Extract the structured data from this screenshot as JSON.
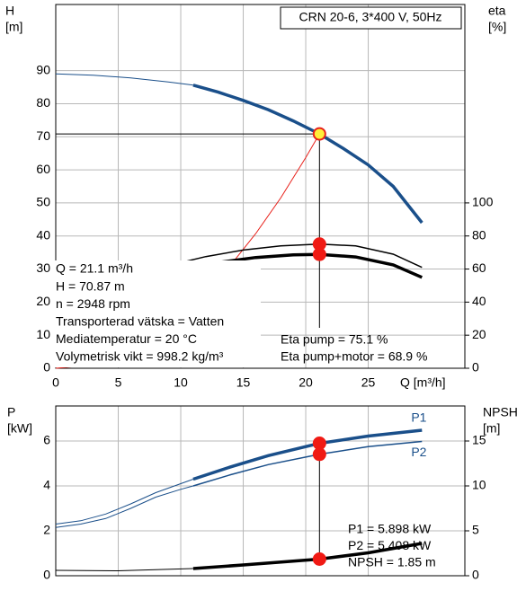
{
  "chart_data": [
    {
      "type": "line",
      "title": "CRN 20-6, 3*400 V, 50Hz",
      "ylabel": [
        "H",
        "[m]"
      ],
      "y2label": [
        "eta",
        "[%]"
      ],
      "xlabel": "Q [m³/h]",
      "xlim": [
        0,
        32.73
      ],
      "xticks": [
        0,
        5,
        10,
        15,
        20,
        25
      ],
      "ylim": [
        0,
        110
      ],
      "yticks": [
        0,
        10,
        20,
        30,
        40,
        50,
        60,
        70,
        80,
        90
      ],
      "y2lim": [
        0,
        220
      ],
      "y2ticks": [
        0,
        20,
        40,
        60,
        80,
        100
      ],
      "grid": true,
      "series": [
        {
          "color": "#1a4f8a",
          "width": 1,
          "axis": "y",
          "x": [
            0,
            3,
            6,
            9,
            11
          ],
          "values": [
            89,
            88.6,
            87.8,
            86.6,
            85.6
          ]
        },
        {
          "color": "#1a4f8a",
          "width": 3.5,
          "axis": "y",
          "x": [
            11,
            13,
            15,
            17,
            19,
            21.1,
            23,
            25,
            27,
            29.3
          ],
          "values": [
            85.6,
            83.5,
            81,
            78.2,
            74.8,
            70.87,
            66.5,
            61.5,
            55,
            44
          ]
        },
        {
          "color": "#e8201a",
          "width": 1,
          "axis": "y",
          "x": [
            0,
            2,
            4,
            6,
            8,
            10,
            12,
            14,
            16,
            18,
            20,
            21.1
          ],
          "values": [
            0,
            0.64,
            2.5,
            5.7,
            10.2,
            15.9,
            22.9,
            31.2,
            40.7,
            51.5,
            63.7,
            70.87
          ]
        },
        {
          "color": "#000000",
          "width": 1.5,
          "axis": "y2",
          "x": [
            9.5,
            12,
            15,
            18,
            21.1,
            24,
            27,
            29.3
          ],
          "values": [
            63,
            67.5,
            71.5,
            74,
            75.1,
            74,
            69,
            61
          ]
        },
        {
          "color": "#000000",
          "width": 3.5,
          "axis": "y2",
          "x": [
            10.5,
            13,
            16,
            19,
            21.1,
            24,
            27,
            29.3
          ],
          "values": [
            61,
            64,
            67,
            68.6,
            68.9,
            67.3,
            62.5,
            55
          ]
        }
      ],
      "duty": {
        "x": 21.1,
        "y": 70.87
      },
      "markers": [
        {
          "x": 21.1,
          "y": 70.87,
          "axis": "y",
          "color": "#ffef3a",
          "stroke": "#e8201a"
        },
        {
          "x": 21.1,
          "y": 75.1,
          "axis": "y2",
          "color": "#f01a14",
          "stroke": "#f01a14"
        },
        {
          "x": 21.1,
          "y": 68.9,
          "axis": "y2",
          "color": "#f01a14",
          "stroke": "#f01a14"
        }
      ],
      "info": [
        "Q = 21.1 m³/h",
        "H = 70.87 m",
        "n = 2948 rpm",
        "Transporterad vätska = Vatten",
        "Mediatemperatur = 20 °C",
        "Volymetrisk vikt = 998.2 kg/m³"
      ],
      "annotations": [
        "Eta pump = 75.1 %",
        "Eta pump+motor = 68.9 %"
      ]
    },
    {
      "type": "line",
      "ylabel": [
        "P",
        "[kW]"
      ],
      "y2label": [
        "NPSH",
        "[m]"
      ],
      "xlim": [
        0,
        32.73
      ],
      "xticks": [
        0,
        5,
        10,
        15,
        20,
        25
      ],
      "ylim": [
        0,
        7.56
      ],
      "yticks": [
        0,
        2,
        4,
        6
      ],
      "y2lim": [
        0,
        18.9
      ],
      "y2ticks": [
        0,
        5,
        10,
        15
      ],
      "grid": true,
      "series": [
        {
          "color": "#1a4f8a",
          "width": 1,
          "axis": "y",
          "x": [
            0,
            2,
            4,
            6,
            8,
            10,
            11
          ],
          "values": [
            2.3,
            2.45,
            2.75,
            3.2,
            3.7,
            4.1,
            4.3
          ]
        },
        {
          "name": "P1",
          "color": "#1a4f8a",
          "width": 3.5,
          "axis": "y",
          "x": [
            11,
            14,
            17,
            21.1,
            25,
            29.3
          ],
          "values": [
            4.3,
            4.85,
            5.35,
            5.898,
            6.22,
            6.48
          ]
        },
        {
          "color": "#1a4f8a",
          "width": 1,
          "axis": "y",
          "x": [
            0,
            2,
            4,
            6,
            8,
            10,
            11
          ],
          "values": [
            2.15,
            2.3,
            2.55,
            3.0,
            3.5,
            3.85,
            4.0
          ]
        },
        {
          "name": "P2",
          "color": "#1a4f8a",
          "width": 1.5,
          "axis": "y",
          "x": [
            11,
            14,
            17,
            21.1,
            25,
            29.3
          ],
          "values": [
            4.0,
            4.5,
            4.95,
            5.408,
            5.75,
            5.98
          ]
        },
        {
          "color": "#000000",
          "width": 1,
          "axis": "y2",
          "x": [
            0,
            5,
            11
          ],
          "values": [
            0.6,
            0.55,
            0.8
          ]
        },
        {
          "color": "#000000",
          "width": 3.5,
          "axis": "y2",
          "x": [
            11,
            15,
            21.1,
            25,
            29.3
          ],
          "values": [
            0.8,
            1.2,
            1.85,
            2.55,
            3.6
          ]
        }
      ],
      "duty": {
        "x": 21.1
      },
      "markers": [
        {
          "x": 21.1,
          "y": 5.898,
          "axis": "y",
          "color": "#f01a14",
          "stroke": "#f01a14"
        },
        {
          "x": 21.1,
          "y": 5.408,
          "axis": "y",
          "color": "#f01a14",
          "stroke": "#f01a14"
        },
        {
          "x": 21.1,
          "y": 1.85,
          "axis": "y2",
          "color": "#f01a14",
          "stroke": "#f01a14"
        }
      ],
      "annotations": [
        "P1 = 5.898 kW",
        "P2 = 5.408 kW",
        "NPSH = 1.85 m"
      ]
    }
  ]
}
